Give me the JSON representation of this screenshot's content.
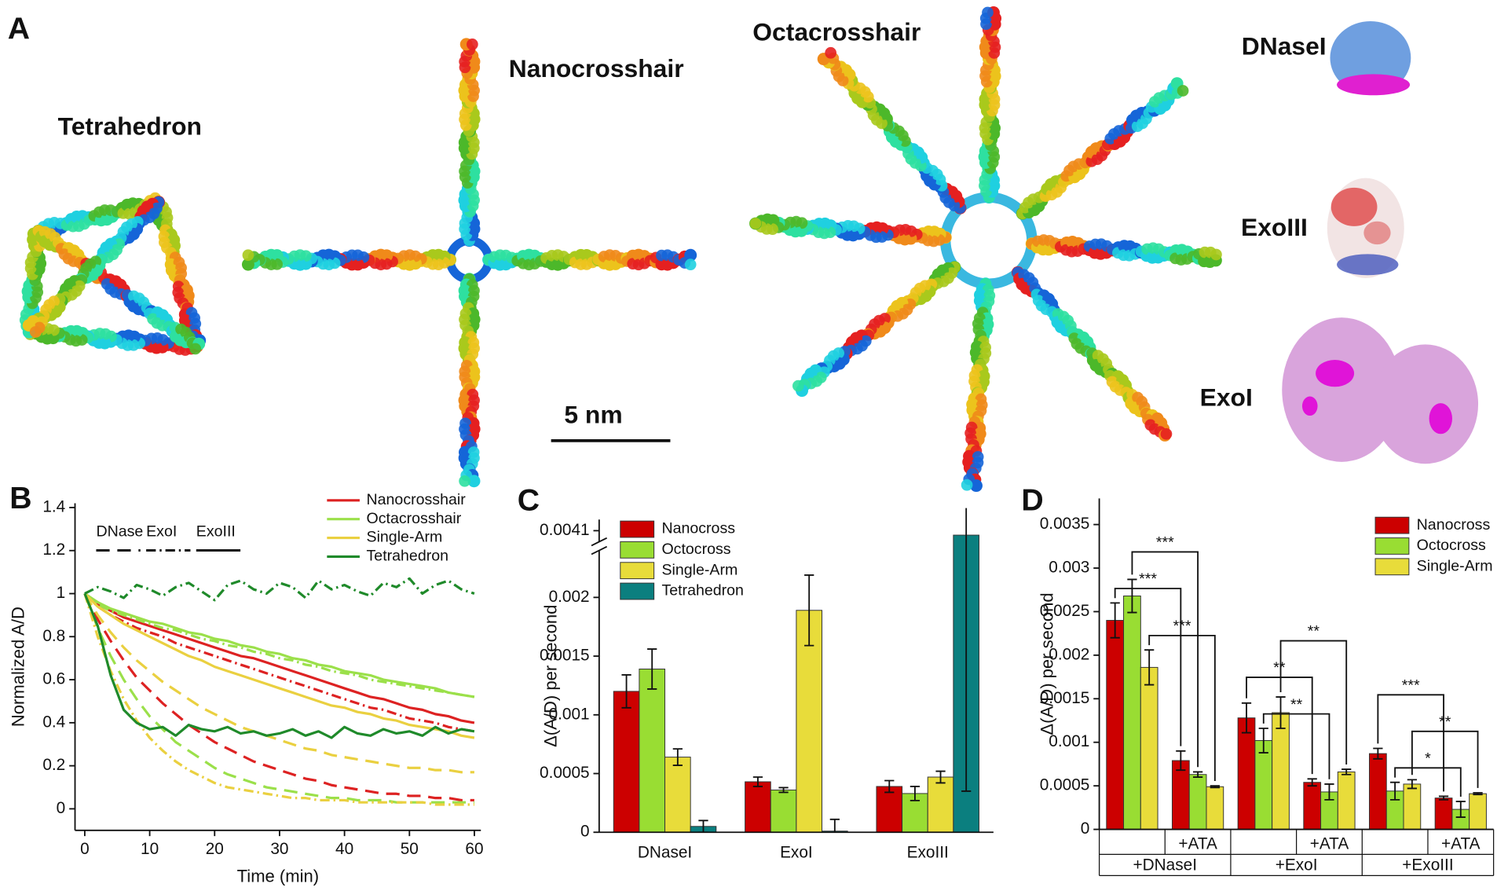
{
  "panel_a": {
    "label": "A",
    "structures": [
      "Tetrahedron",
      "Nanocrosshair",
      "Octacrosshair"
    ],
    "enzymes": [
      "DNaseI",
      "ExoIII",
      "ExoI"
    ],
    "scale_bar": "5 nm"
  },
  "chart_data": [
    {
      "type": "line",
      "label": "B",
      "xlabel": "Time (min)",
      "ylabel": "Normalized A/D",
      "x": [
        0,
        2,
        4,
        6,
        8,
        10,
        12,
        14,
        16,
        18,
        20,
        22,
        24,
        26,
        28,
        30,
        32,
        34,
        36,
        38,
        40,
        42,
        44,
        46,
        48,
        50,
        52,
        54,
        56,
        58,
        60
      ],
      "xlim": [
        -1.5,
        61
      ],
      "xticks": [
        0,
        10,
        20,
        30,
        40,
        50,
        60
      ],
      "ylim": [
        -0.1,
        1.42
      ],
      "yticks": [
        0,
        0.2,
        0.4,
        0.6,
        0.8,
        1,
        1.2,
        1.4
      ],
      "styles": [
        {
          "name": "DNase",
          "dash": "14 8"
        },
        {
          "name": "ExoI",
          "dash": "10 4 2 4"
        },
        {
          "name": "ExoIII",
          "dash": "none"
        }
      ],
      "series": [
        {
          "name": "Nanocrosshair",
          "color": "#dd2222",
          "values": [
            [
              1,
              0.88,
              0.78,
              0.69,
              0.61,
              0.55,
              0.49,
              0.44,
              0.39,
              0.35,
              0.31,
              0.28,
              0.25,
              0.22,
              0.2,
              0.18,
              0.16,
              0.14,
              0.13,
              0.11,
              0.1,
              0.09,
              0.08,
              0.07,
              0.07,
              0.06,
              0.06,
              0.05,
              0.05,
              0.04,
              0.04
            ],
            [
              1,
              0.94,
              0.9,
              0.87,
              0.84,
              0.82,
              0.8,
              0.77,
              0.75,
              0.73,
              0.71,
              0.69,
              0.67,
              0.65,
              0.63,
              0.61,
              0.59,
              0.57,
              0.55,
              0.53,
              0.51,
              0.49,
              0.47,
              0.46,
              0.44,
              0.42,
              0.41,
              0.4,
              0.38,
              0.37,
              0.36
            ],
            [
              1,
              0.95,
              0.92,
              0.89,
              0.87,
              0.85,
              0.83,
              0.81,
              0.79,
              0.77,
              0.75,
              0.73,
              0.71,
              0.7,
              0.68,
              0.66,
              0.64,
              0.62,
              0.6,
              0.58,
              0.56,
              0.54,
              0.52,
              0.51,
              0.49,
              0.47,
              0.46,
              0.44,
              0.43,
              0.41,
              0.4
            ]
          ]
        },
        {
          "name": "Octacrosshair",
          "color": "#9be04a",
          "values": [
            [
              1,
              0.84,
              0.71,
              0.6,
              0.51,
              0.43,
              0.37,
              0.31,
              0.27,
              0.23,
              0.19,
              0.16,
              0.14,
              0.12,
              0.1,
              0.09,
              0.08,
              0.07,
              0.06,
              0.05,
              0.05,
              0.04,
              0.04,
              0.04,
              0.03,
              0.03,
              0.03,
              0.03,
              0.03,
              0.03,
              0.03
            ],
            [
              1,
              0.95,
              0.92,
              0.9,
              0.88,
              0.86,
              0.84,
              0.83,
              0.81,
              0.79,
              0.78,
              0.76,
              0.75,
              0.73,
              0.72,
              0.7,
              0.69,
              0.67,
              0.66,
              0.64,
              0.63,
              0.62,
              0.6,
              0.59,
              0.58,
              0.57,
              0.56,
              0.55,
              0.54,
              0.53,
              0.52
            ],
            [
              1,
              0.96,
              0.93,
              0.91,
              0.89,
              0.87,
              0.86,
              0.84,
              0.82,
              0.81,
              0.79,
              0.78,
              0.76,
              0.75,
              0.73,
              0.72,
              0.7,
              0.69,
              0.67,
              0.66,
              0.64,
              0.63,
              0.62,
              0.6,
              0.59,
              0.58,
              0.57,
              0.56,
              0.54,
              0.53,
              0.52
            ]
          ]
        },
        {
          "name": "Single-Arm",
          "color": "#ead040",
          "values": [
            [
              1,
              0.9,
              0.82,
              0.75,
              0.69,
              0.64,
              0.59,
              0.55,
              0.51,
              0.47,
              0.44,
              0.41,
              0.38,
              0.36,
              0.34,
              0.32,
              0.3,
              0.28,
              0.27,
              0.25,
              0.24,
              0.23,
              0.22,
              0.21,
              0.2,
              0.19,
              0.19,
              0.18,
              0.18,
              0.17,
              0.17
            ],
            [
              1,
              0.8,
              0.64,
              0.51,
              0.41,
              0.33,
              0.27,
              0.22,
              0.18,
              0.15,
              0.12,
              0.1,
              0.09,
              0.08,
              0.07,
              0.06,
              0.05,
              0.05,
              0.04,
              0.04,
              0.04,
              0.03,
              0.03,
              0.03,
              0.03,
              0.03,
              0.03,
              0.02,
              0.02,
              0.02,
              0.02
            ],
            [
              1,
              0.94,
              0.9,
              0.86,
              0.83,
              0.8,
              0.77,
              0.74,
              0.71,
              0.69,
              0.66,
              0.64,
              0.62,
              0.6,
              0.58,
              0.56,
              0.54,
              0.52,
              0.5,
              0.48,
              0.47,
              0.45,
              0.44,
              0.42,
              0.41,
              0.39,
              0.38,
              0.37,
              0.36,
              0.34,
              0.33
            ]
          ]
        },
        {
          "name": "Tetrahedron",
          "color": "#1f8a2a",
          "values": [
            null,
            [
              1,
              1.03,
              1.01,
              0.98,
              1.04,
              1.02,
              0.99,
              1.03,
              1.05,
              1.01,
              0.97,
              1.04,
              1.06,
              1.02,
              1.0,
              1.05,
              1.03,
              0.98,
              1.06,
              1.02,
              1.04,
              1.01,
              0.99,
              1.05,
              1.03,
              1.07,
              1.0,
              1.04,
              1.06,
              1.02,
              1.0
            ],
            [
              1,
              0.85,
              0.62,
              0.46,
              0.4,
              0.37,
              0.38,
              0.34,
              0.39,
              0.37,
              0.36,
              0.38,
              0.35,
              0.36,
              0.34,
              0.35,
              0.37,
              0.34,
              0.36,
              0.33,
              0.38,
              0.35,
              0.34,
              0.37,
              0.35,
              0.36,
              0.34,
              0.38,
              0.35,
              0.37,
              0.36
            ]
          ]
        }
      ]
    },
    {
      "type": "bar",
      "label": "C",
      "ylabel": "Δ(A/D) per second",
      "categories": [
        "DNaseI",
        "ExoI",
        "ExoIII"
      ],
      "ylim": [
        0,
        0.00415
      ],
      "axis_break": [
        0.0024,
        0.00405
      ],
      "yticks": [
        0,
        0.0005,
        0.001,
        0.0015,
        0.002,
        0.0041
      ],
      "series": [
        {
          "name": "Nanocross",
          "color": "#cc0000",
          "values": [
            0.0012,
            0.00043,
            0.00039
          ],
          "errors": [
            0.00014,
            4e-05,
            5e-05
          ]
        },
        {
          "name": "Octocross",
          "color": "#99dd33",
          "values": [
            0.00139,
            0.00036,
            0.00033
          ],
          "errors": [
            0.00017,
            2e-05,
            6e-05
          ]
        },
        {
          "name": "Single-Arm",
          "color": "#e8dc3a",
          "values": [
            0.00064,
            0.00189,
            0.00047
          ],
          "errors": [
            7e-05,
            0.0003,
            5e-05
          ]
        },
        {
          "name": "Tetrahedron",
          "color": "#0b7f7f",
          "values": [
            5e-05,
            1e-05,
            0.00408
          ],
          "errors": [
            5e-05,
            0.0001,
            0.00373
          ]
        }
      ]
    },
    {
      "type": "bar",
      "label": "D",
      "ylabel": "Δ(A/D) per second",
      "categories": [
        null,
        "+ATA",
        null,
        "+ATA",
        null,
        "+ATA"
      ],
      "groups": [
        "+DNaseI",
        "+ExoI",
        "+ExoIII"
      ],
      "ylim": [
        0,
        0.0038
      ],
      "yticks": [
        0,
        0.0005,
        0.001,
        0.0015,
        0.002,
        0.0025,
        0.003,
        0.0035
      ],
      "series": [
        {
          "name": "Nanocross",
          "color": "#cc0000",
          "values": [
            0.0024,
            0.00079,
            0.00128,
            0.00054,
            0.00087,
            0.00036
          ],
          "errors": [
            0.0002,
            0.00011,
            0.00017,
            4e-05,
            6e-05,
            2e-05
          ],
          "significance": [
            "***",
            "**",
            "***"
          ]
        },
        {
          "name": "Octocross",
          "color": "#99dd33",
          "values": [
            0.00268,
            0.00063,
            0.00102,
            0.00043,
            0.00044,
            0.00023
          ],
          "errors": [
            0.00019,
            3e-05,
            0.00014,
            9e-05,
            0.0001,
            9e-05
          ],
          "significance": [
            "***",
            "**",
            "*"
          ]
        },
        {
          "name": "Single-Arm",
          "color": "#e8dc3a",
          "values": [
            0.00186,
            0.00049,
            0.00134,
            0.00066,
            0.00052,
            0.00041
          ],
          "errors": [
            0.0002,
            1e-05,
            0.00018,
            3e-05,
            5e-05,
            1e-05
          ],
          "significance": [
            "***",
            "**",
            "**"
          ]
        }
      ]
    }
  ]
}
